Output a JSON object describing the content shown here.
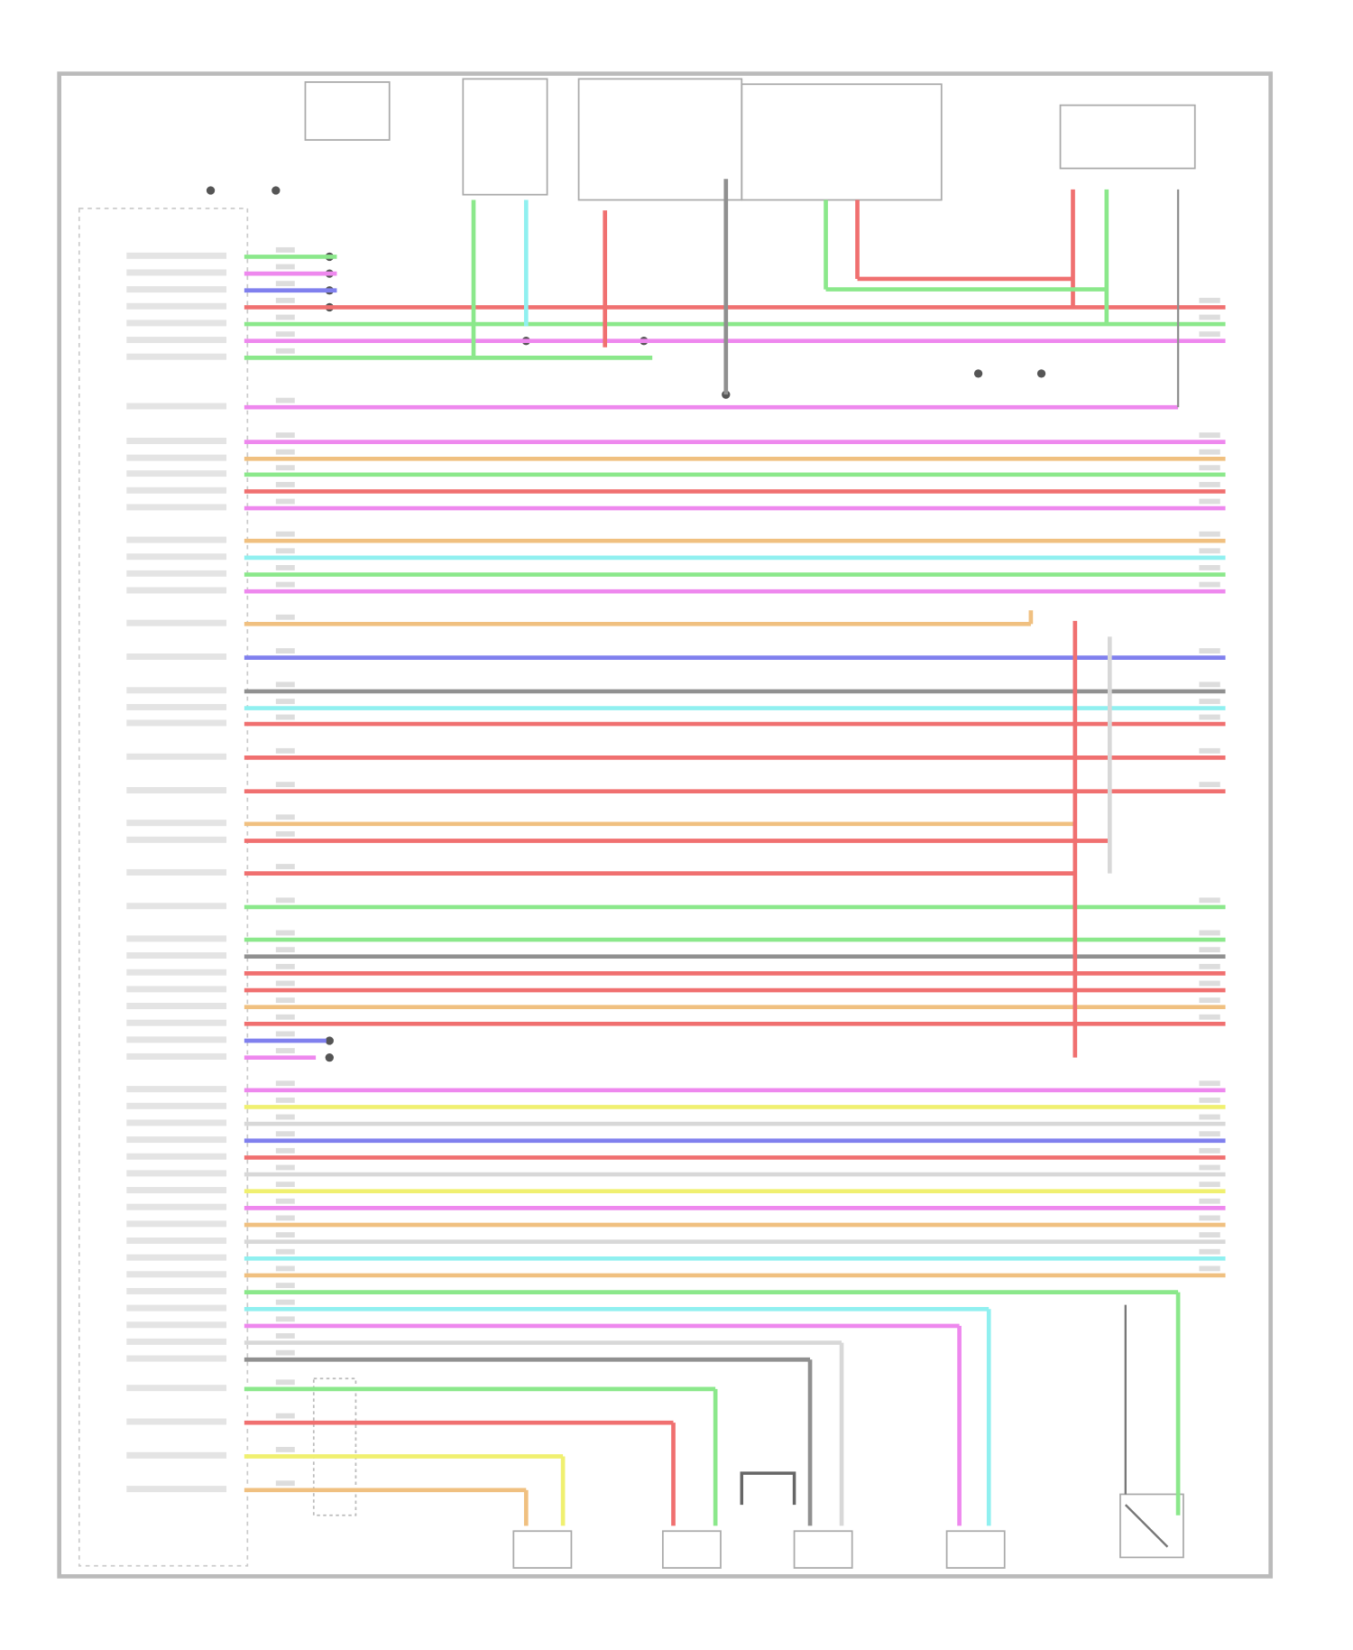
{
  "diagram": {
    "wire_colors": {
      "green": "#8be88b",
      "pink": "#ee88ee",
      "blue": "#8080ee",
      "red": "#f07070",
      "orange": "#f0c080",
      "yellow": "#f0f070",
      "cyan": "#90f0f0",
      "gray": "#909090",
      "lightgray": "#d8d8d8"
    },
    "frame_color": "#bbbbbb",
    "text_color": "#999999"
  }
}
